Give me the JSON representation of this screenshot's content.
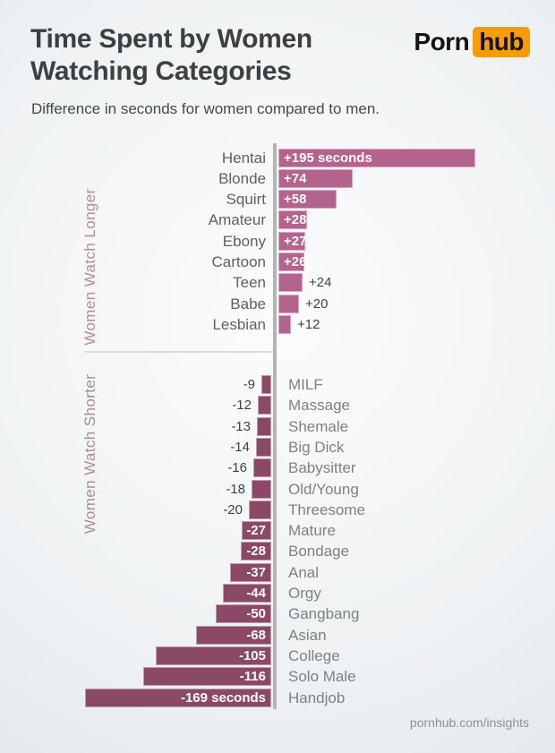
{
  "header": {
    "title_line1": "Time Spent by Women",
    "title_line2": "Watching Categories",
    "subtitle": "Difference in seconds for women compared to men.",
    "logo": {
      "word1": "Porn",
      "word2": "hub"
    }
  },
  "chart_data": {
    "type": "bar",
    "orientation": "horizontal_diverging",
    "title": "Time Spent by Women Watching Categories",
    "subtitle": "Difference in seconds for women compared to men.",
    "unit": "seconds",
    "zero_axis_line": true,
    "value_labels_shown": true,
    "sections": [
      {
        "label": "Women Watch Longer",
        "sign": "positive",
        "items": [
          {
            "category": "Hentai",
            "value": 195,
            "label": "+195 seconds"
          },
          {
            "category": "Blonde",
            "value": 74,
            "label": "+74"
          },
          {
            "category": "Squirt",
            "value": 58,
            "label": "+58"
          },
          {
            "category": "Amateur",
            "value": 28,
            "label": "+28"
          },
          {
            "category": "Ebony",
            "value": 27,
            "label": "+27"
          },
          {
            "category": "Cartoon",
            "value": 26,
            "label": "+26"
          },
          {
            "category": "Teen",
            "value": 24,
            "label": "+24"
          },
          {
            "category": "Babe",
            "value": 20,
            "label": "+20"
          },
          {
            "category": "Lesbian",
            "value": 12,
            "label": "+12"
          }
        ]
      },
      {
        "label": "Women Watch Shorter",
        "sign": "negative",
        "items": [
          {
            "category": "MILF",
            "value": -9,
            "label": "-9"
          },
          {
            "category": "Massage",
            "value": -12,
            "label": "-12"
          },
          {
            "category": "Shemale",
            "value": -13,
            "label": "-13"
          },
          {
            "category": "Big Dick",
            "value": -14,
            "label": "-14"
          },
          {
            "category": "Babysitter",
            "value": -16,
            "label": "-16"
          },
          {
            "category": "Old/Young",
            "value": -18,
            "label": "-18"
          },
          {
            "category": "Threesome",
            "value": -20,
            "label": "-20"
          },
          {
            "category": "Mature",
            "value": -27,
            "label": "-27"
          },
          {
            "category": "Bondage",
            "value": -28,
            "label": "-28"
          },
          {
            "category": "Anal",
            "value": -37,
            "label": "-37"
          },
          {
            "category": "Orgy",
            "value": -44,
            "label": "-44"
          },
          {
            "category": "Gangbang",
            "value": -50,
            "label": "-50"
          },
          {
            "category": "Asian",
            "value": -68,
            "label": "-68"
          },
          {
            "category": "College",
            "value": -105,
            "label": "-105"
          },
          {
            "category": "Solo Male",
            "value": -116,
            "label": "-116"
          },
          {
            "category": "Handjob",
            "value": -169,
            "label": "-169 seconds"
          }
        ]
      }
    ],
    "colors": {
      "positive_bar": "#b4628e",
      "negative_bar": "#8b4867",
      "logo_orange": "#f79b0a"
    }
  },
  "footer": {
    "credit": "pornhub.com/insights"
  }
}
